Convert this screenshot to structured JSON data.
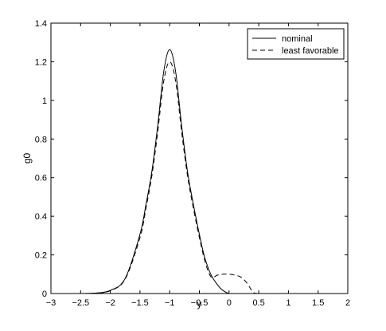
{
  "chart_data": {
    "type": "line",
    "title": "",
    "xlabel": "y",
    "ylabel": "g0",
    "xlim": [
      -3,
      2
    ],
    "ylim": [
      0,
      1.4
    ],
    "xticks": [
      -3,
      -2.5,
      -2,
      -1.5,
      -1,
      -0.5,
      0,
      0.5,
      1,
      1.5,
      2
    ],
    "yticks": [
      0,
      0.2,
      0.4,
      0.6,
      0.8,
      1,
      1.2,
      1.4
    ],
    "xtick_labels": [
      "−3",
      "−2.5",
      "−2",
      "−1.5",
      "−1",
      "−0.5",
      "0",
      "0.5",
      "1",
      "1.5",
      "2"
    ],
    "ytick_labels": [
      "0",
      "0.2",
      "0.4",
      "0.6",
      "0.8",
      "1",
      "1.2",
      "1.4"
    ],
    "grid": false,
    "legend_position": "top-right",
    "series": [
      {
        "name": "nominal",
        "style": "solid",
        "color": "#000000",
        "x": [
          -3.0,
          -2.5,
          -2.25,
          -2.0,
          -1.75,
          -1.5,
          -1.4,
          -1.3,
          -1.2,
          -1.1,
          -1.0,
          -0.9,
          -0.8,
          -0.7,
          -0.6,
          -0.5,
          -0.4,
          -0.25,
          0.0,
          0.5,
          1.0,
          1.5,
          2.0
        ],
        "y": [
          0.0,
          0.0,
          0.002,
          0.016,
          0.078,
          0.307,
          0.46,
          0.632,
          0.873,
          1.149,
          1.263,
          1.149,
          0.873,
          0.632,
          0.46,
          0.307,
          0.176,
          0.069,
          0.0,
          0.0,
          0.0,
          0.0,
          0.0
        ]
      },
      {
        "name": "least favorable",
        "style": "dashed",
        "color": "#000000",
        "x": [
          -3.0,
          -2.5,
          -2.25,
          -2.0,
          -1.75,
          -1.5,
          -1.4,
          -1.3,
          -1.2,
          -1.1,
          -1.0,
          -0.9,
          -0.8,
          -0.7,
          -0.6,
          -0.5,
          -0.4,
          -0.3,
          -0.2,
          -0.1,
          0.0,
          0.1,
          0.2,
          0.3,
          0.4,
          0.5,
          1.0,
          1.5,
          2.0
        ],
        "y": [
          0.0,
          0.0,
          0.002,
          0.015,
          0.074,
          0.29,
          0.44,
          0.61,
          0.84,
          1.1,
          1.2,
          1.1,
          0.84,
          0.61,
          0.44,
          0.29,
          0.16,
          0.085,
          0.095,
          0.1,
          0.1,
          0.095,
          0.085,
          0.055,
          0.01,
          0.0,
          0.0,
          0.0,
          0.0
        ]
      }
    ]
  }
}
